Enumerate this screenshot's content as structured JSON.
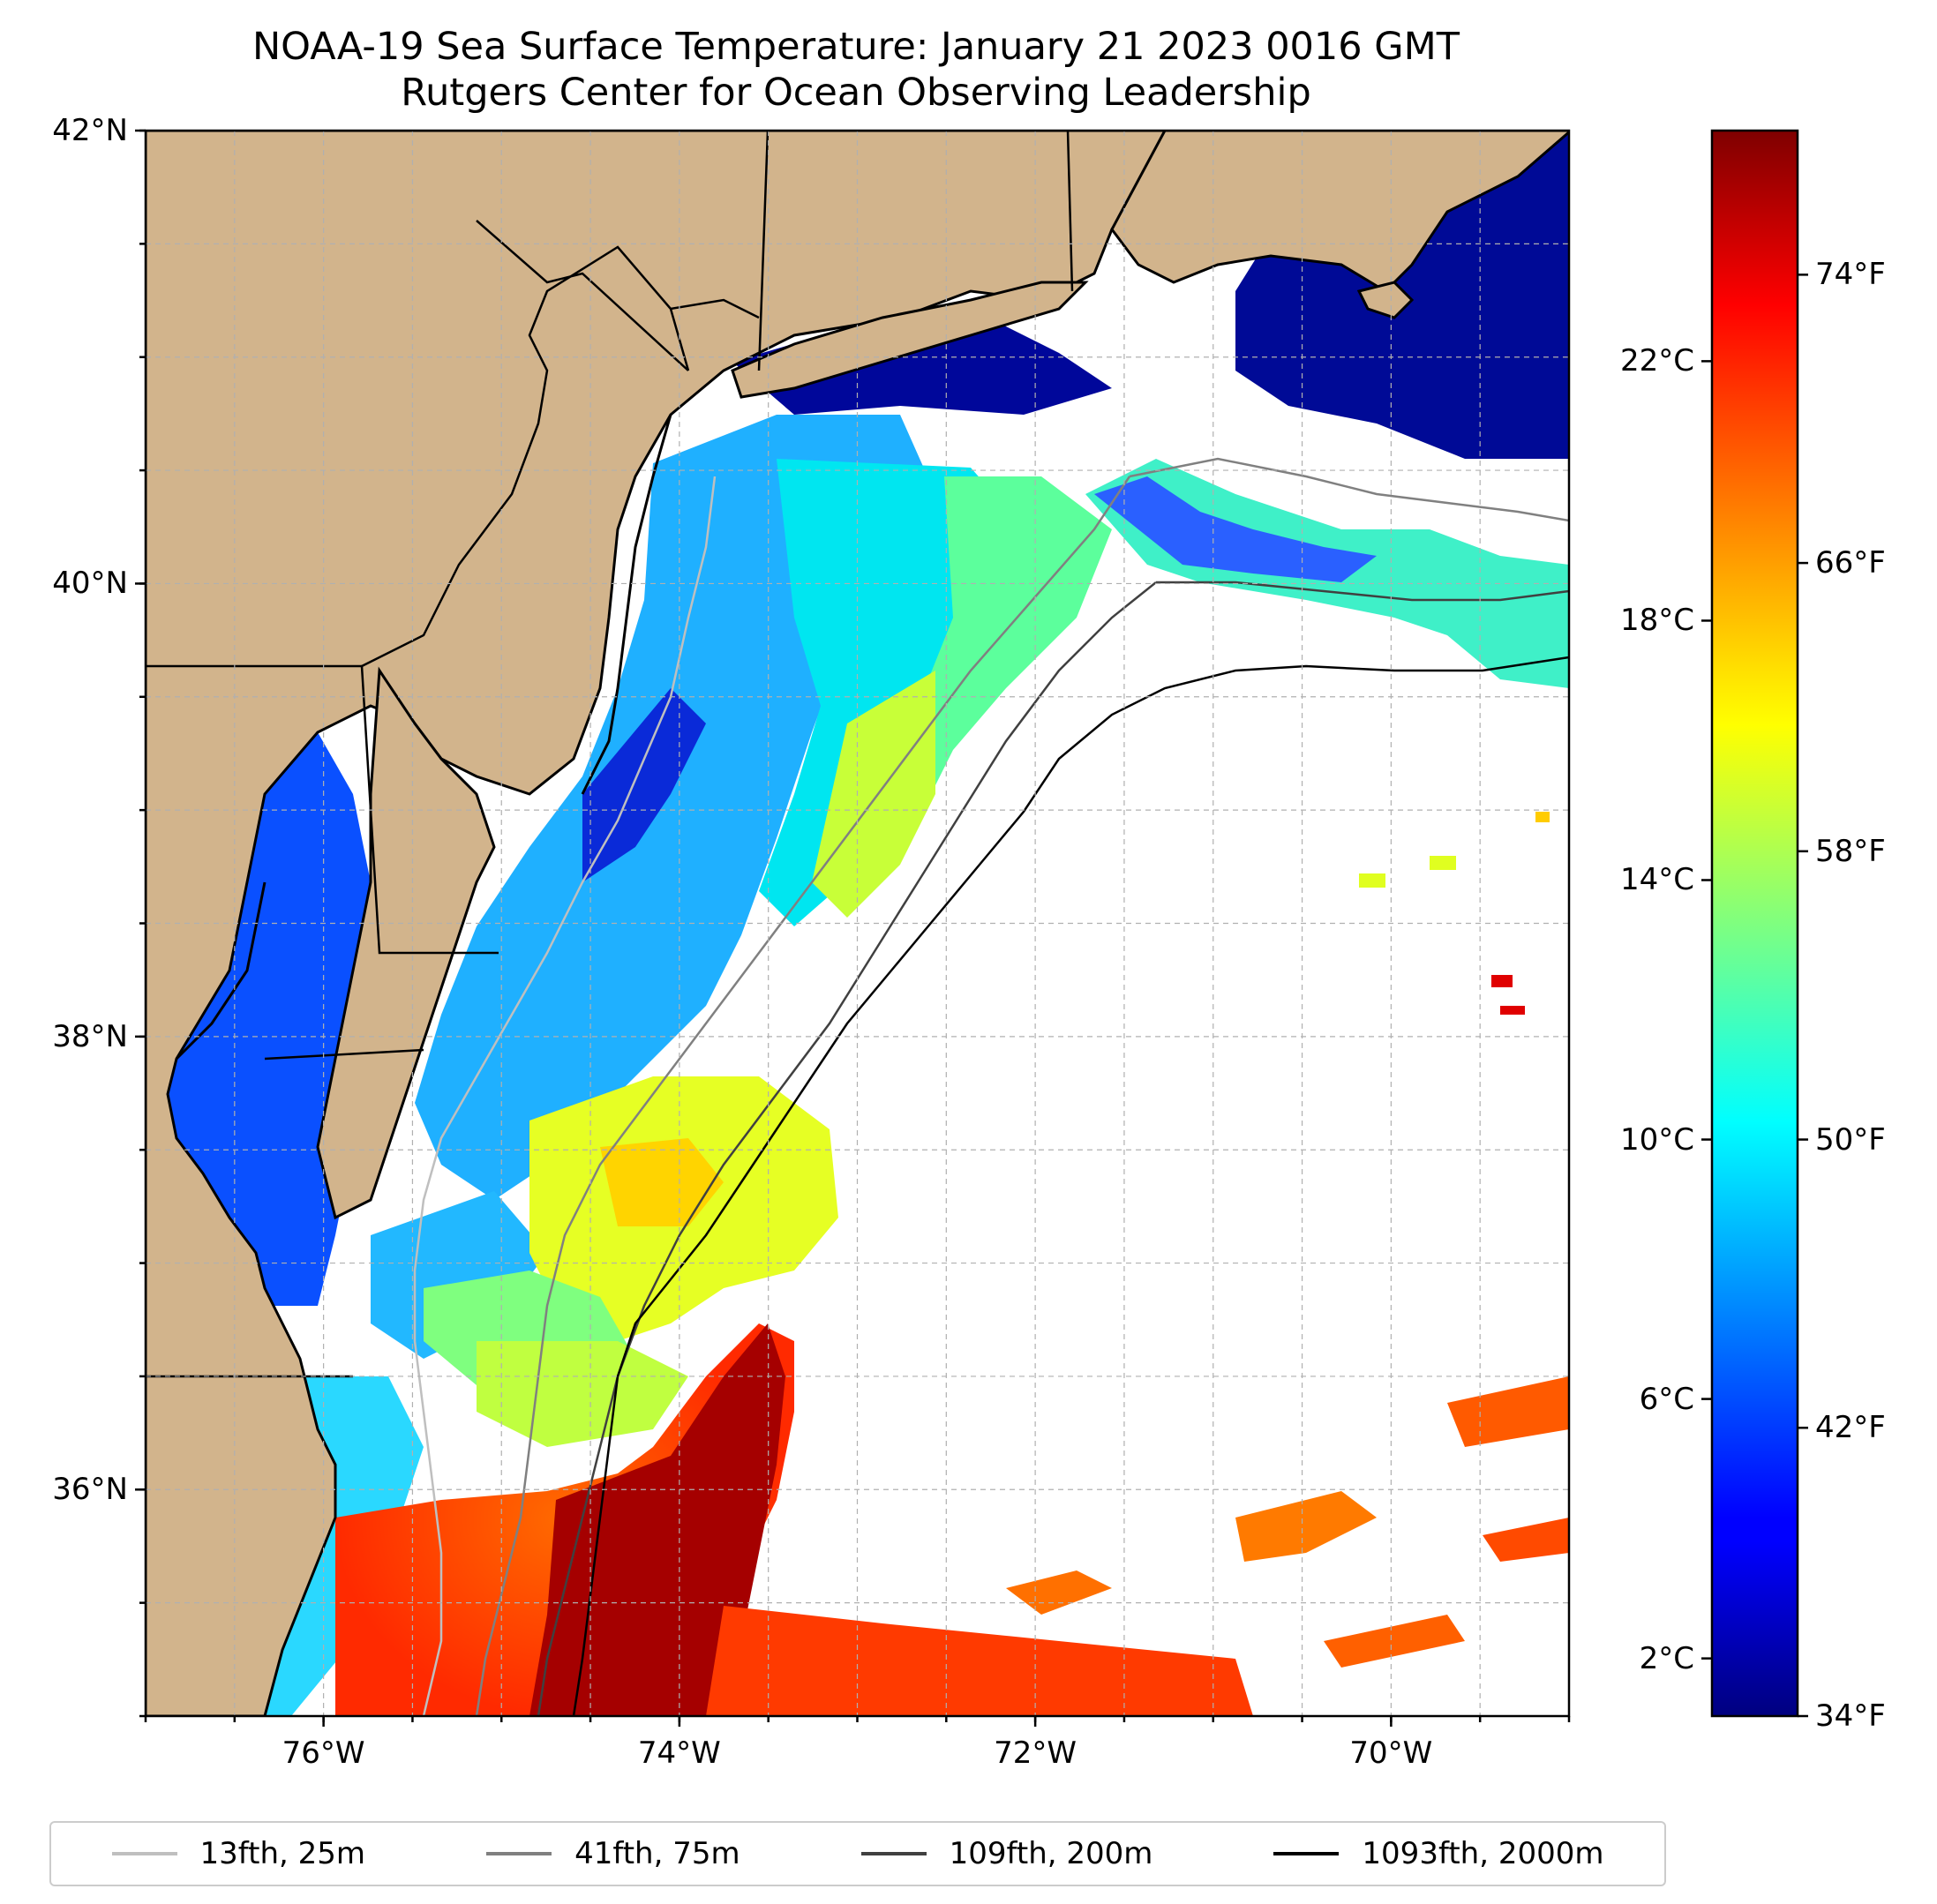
{
  "title": {
    "line1": "NOAA-19 Sea Surface Temperature: January 21 2023 0016 GMT",
    "line2": "Rutgers Center for Ocean Observing Leadership"
  },
  "map": {
    "lat_range": [
      35,
      42
    ],
    "lon_range": [
      -77,
      -69
    ],
    "land_color": "#d2b48c",
    "no_data_color": "#ffffff",
    "grid": true,
    "y_ticks": [
      {
        "lat": 42,
        "label": "42°N"
      },
      {
        "lat": 40,
        "label": "40°N"
      },
      {
        "lat": 38,
        "label": "38°N"
      },
      {
        "lat": 36,
        "label": "36°N"
      }
    ],
    "x_ticks": [
      {
        "lon": -76,
        "label": "76°W"
      },
      {
        "lon": -74,
        "label": "74°W"
      },
      {
        "lon": -72,
        "label": "72°W"
      },
      {
        "lon": -70,
        "label": "70°W"
      }
    ]
  },
  "colorbar": {
    "colormap": "jet",
    "range_f": [
      34,
      78
    ],
    "celsius_ticks": [
      {
        "value": 2,
        "label": "2°C"
      },
      {
        "value": 6,
        "label": "6°C"
      },
      {
        "value": 10,
        "label": "10°C"
      },
      {
        "value": 14,
        "label": "14°C"
      },
      {
        "value": 18,
        "label": "18°C"
      },
      {
        "value": 22,
        "label": "22°C"
      }
    ],
    "fahrenheit_ticks": [
      {
        "value": 34,
        "label": "34°F"
      },
      {
        "value": 42,
        "label": "42°F"
      },
      {
        "value": 50,
        "label": "50°F"
      },
      {
        "value": 58,
        "label": "58°F"
      },
      {
        "value": 66,
        "label": "66°F"
      },
      {
        "value": 74,
        "label": "74°F"
      }
    ]
  },
  "legend": {
    "placement": "bottom",
    "items": [
      {
        "label": "13fth, 25m",
        "color": "#bfbfbf"
      },
      {
        "label": "41fth, 75m",
        "color": "#808080"
      },
      {
        "label": "109fth, 200m",
        "color": "#404040"
      },
      {
        "label": "1093fth, 2000m",
        "color": "#000000"
      }
    ]
  }
}
